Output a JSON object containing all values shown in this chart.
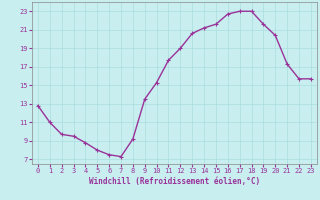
{
  "x": [
    0,
    1,
    2,
    3,
    4,
    5,
    6,
    7,
    8,
    9,
    10,
    11,
    12,
    13,
    14,
    15,
    16,
    17,
    18,
    19,
    20,
    21,
    22,
    23
  ],
  "y": [
    12.8,
    11.0,
    9.7,
    9.5,
    8.8,
    8.0,
    7.5,
    7.3,
    9.2,
    13.5,
    15.3,
    17.7,
    19.0,
    20.6,
    21.2,
    21.6,
    22.7,
    23.0,
    23.0,
    21.6,
    20.4,
    17.3,
    15.7,
    15.7
  ],
  "line_color": "#993399",
  "marker": "+",
  "marker_size": 3,
  "line_width": 1.0,
  "background_color": "#c8eef0",
  "grid_color": "#aadddd",
  "xlabel": "Windchill (Refroidissement éolien,°C)",
  "ylabel": "",
  "xlim": [
    -0.5,
    23.5
  ],
  "ylim": [
    6.5,
    24.0
  ],
  "yticks": [
    7,
    9,
    11,
    13,
    15,
    17,
    19,
    21,
    23
  ],
  "xticks": [
    0,
    1,
    2,
    3,
    4,
    5,
    6,
    7,
    8,
    9,
    10,
    11,
    12,
    13,
    14,
    15,
    16,
    17,
    18,
    19,
    20,
    21,
    22,
    23
  ],
  "tick_color": "#993399",
  "label_fontsize": 5.5,
  "tick_fontsize": 5.0,
  "title": ""
}
